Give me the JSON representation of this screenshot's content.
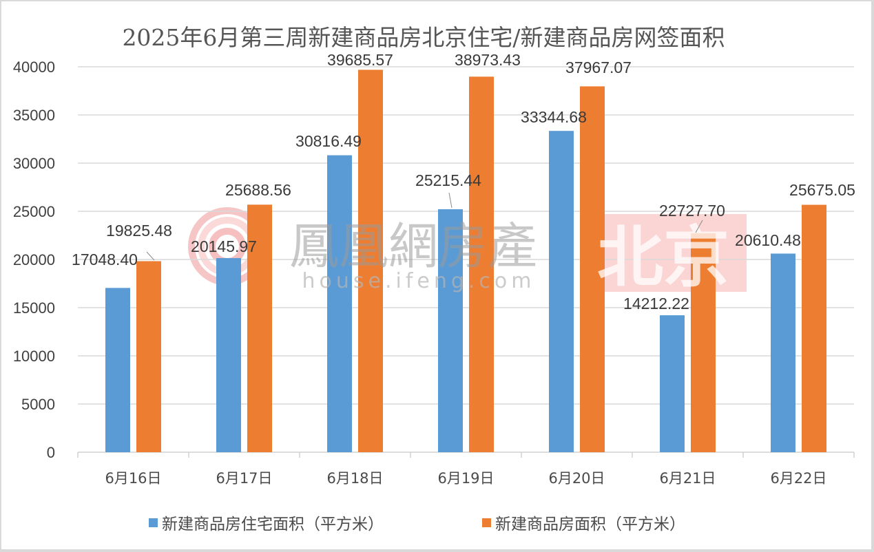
{
  "chart_data": {
    "type": "bar",
    "title": "2025年6月第三周新建商品房北京住宅/新建商品房网签面积",
    "categories": [
      "6月16日",
      "6月17日",
      "6月18日",
      "6月19日",
      "6月20日",
      "6月21日",
      "6月22日"
    ],
    "series": [
      {
        "name": "新建商品房住宅面积（平方米）",
        "color": "#5b9bd5",
        "values": [
          17048.4,
          20145.97,
          30816.49,
          25215.44,
          33344.68,
          14212.22,
          20610.48
        ],
        "labels": [
          "17048.40",
          "20145.97",
          "30816.49",
          "25215.44",
          "33344.68",
          "14212.22",
          "20610.48"
        ]
      },
      {
        "name": "新建商品房面积（平方米）",
        "color": "#ed7d31",
        "values": [
          19825.48,
          25688.56,
          39685.57,
          38973.43,
          37967.07,
          22727.7,
          25675.05
        ],
        "labels": [
          "19825.48",
          "25688.56",
          "39685.57",
          "38973.43",
          "37967.07",
          "22727.70",
          "25675.05"
        ]
      }
    ],
    "xlabel": "",
    "ylabel": "",
    "ylim": [
      0,
      40000
    ],
    "yticks": [
      "0",
      "5000",
      "10000",
      "15000",
      "20000",
      "25000",
      "30000",
      "35000",
      "40000"
    ],
    "grid": true,
    "legend_position": "bottom"
  },
  "watermark": {
    "brand": "鳳凰網房產",
    "url": "house.ifeng.com",
    "city": "北京"
  }
}
